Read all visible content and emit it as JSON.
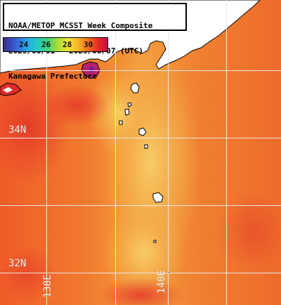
{
  "title": {
    "line1": "NOAA/METOP MCSST Week Composite",
    "line2": "2025/08/01 - 2025/08/07 (UTC)",
    "line3": "Kanagawa Prefecture"
  },
  "legend": {
    "ticks": [
      "24",
      "26",
      "28",
      "30"
    ]
  },
  "grid_labels": {
    "lat_34": "34N",
    "lat_32": "32N",
    "lon_138": "138E",
    "lon_140": "140E"
  },
  "colors": {
    "sea_dominant": "#f07a2a",
    "sea_warm": "#e8452a",
    "sea_cool": "#f4c65a",
    "land": "#ffffff",
    "grid": "#e8e8e8"
  }
}
